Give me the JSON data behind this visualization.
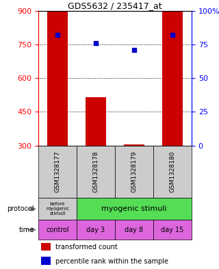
{
  "title": "GDS5632 / 235417_at",
  "samples": [
    "GSM1328177",
    "GSM1328178",
    "GSM1328179",
    "GSM1328180"
  ],
  "transformed_counts": [
    895,
    515,
    305,
    895
  ],
  "transformed_count_base": 300,
  "percentile_ranks": [
    82,
    76,
    71,
    82
  ],
  "ylim_left": [
    300,
    900
  ],
  "ylim_right": [
    0,
    100
  ],
  "yticks_left": [
    300,
    450,
    600,
    750,
    900
  ],
  "yticks_right": [
    0,
    25,
    50,
    75,
    100
  ],
  "ytick_labels_right": [
    "0",
    "25",
    "50",
    "75",
    "100%"
  ],
  "bar_color": "#cc0000",
  "dot_color": "#0000cc",
  "bar_width": 0.55,
  "protocol_label0": "before\nmyogenic\nstimuli",
  "protocol_label1": "myogenic stimuli",
  "protocol_color0": "#cccccc",
  "protocol_color1": "#55dd55",
  "time_labels": [
    "control",
    "day 3",
    "day 8",
    "day 15"
  ],
  "time_color": "#dd66dd",
  "sample_bg_color": "#cccccc",
  "legend_bar_label": "transformed count",
  "legend_dot_label": "percentile rank within the sample"
}
